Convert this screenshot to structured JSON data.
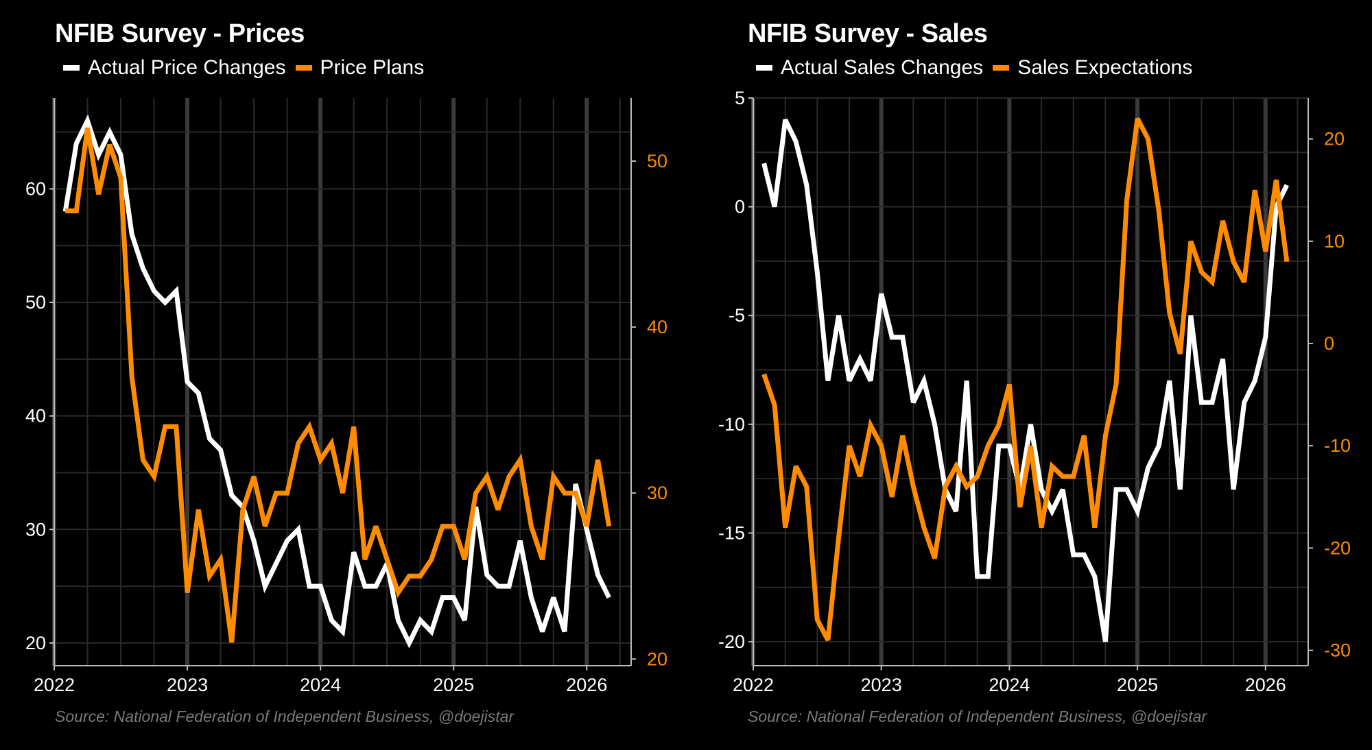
{
  "colors": {
    "background": "#000000",
    "actual": "#ffffff",
    "plans": "#ff8c00",
    "grid": "#2a2a2a",
    "grid_year": "#3a3a3a",
    "axis": "#bdbdbd",
    "source_text": "#7a7a7a"
  },
  "chart_data": [
    {
      "type": "line",
      "title": "NFIB Survey - Prices",
      "source": "Source: National Federation of Independent Business, @doejistar",
      "x_start": "2022-02",
      "x_frequency": "monthly",
      "x_tick_labels": [
        "2022",
        "2023",
        "2024",
        "2025",
        "2026"
      ],
      "xlim": [
        "2022-01",
        "2026-05"
      ],
      "grid": true,
      "legend_position": "top-left",
      "y_left": {
        "ylim": [
          18,
          68
        ],
        "ticks": [
          20,
          30,
          40,
          50,
          60
        ],
        "tick_labels": [
          "20",
          "30",
          "40",
          "50",
          "60"
        ]
      },
      "y_right": {
        "ylim": [
          19.6,
          53.8
        ],
        "ticks": [
          20,
          30,
          40,
          50
        ],
        "tick_labels": [
          "20",
          "30",
          "40",
          "50"
        ]
      },
      "series": [
        {
          "name": "Actual Price Changes",
          "axis": "left",
          "color": "#ffffff",
          "values": [
            58,
            64,
            66,
            63,
            65,
            63,
            56,
            53,
            51,
            50,
            51,
            43,
            42,
            38,
            37,
            33,
            32,
            29,
            25,
            27,
            29,
            30,
            25,
            25,
            22,
            21,
            28,
            25,
            25,
            27,
            22,
            20,
            22,
            21,
            24,
            24,
            22,
            32,
            26,
            25,
            25,
            29,
            24,
            21,
            24,
            21,
            34,
            30,
            26,
            24
          ]
        },
        {
          "name": "Price Plans",
          "axis": "right",
          "color": "#ff8c00",
          "values": [
            47,
            47,
            52,
            48,
            51,
            49,
            37,
            32,
            31,
            34,
            34,
            24,
            29,
            25,
            26,
            21,
            29,
            31,
            28,
            30,
            30,
            33,
            34,
            32,
            33,
            30,
            34,
            26,
            28,
            26,
            24,
            25,
            25,
            26,
            28,
            28,
            26,
            30,
            31,
            29,
            31,
            32,
            28,
            26,
            31,
            30,
            30,
            28,
            32,
            28
          ]
        }
      ]
    },
    {
      "type": "line",
      "title": "NFIB Survey - Sales",
      "source": "Source: National Federation of Independent Business, @doejistar",
      "x_start": "2022-02",
      "x_frequency": "monthly",
      "x_tick_labels": [
        "2022",
        "2023",
        "2024",
        "2025",
        "2026"
      ],
      "xlim": [
        "2022-01",
        "2026-05"
      ],
      "grid": true,
      "legend_position": "top-left",
      "y_left": {
        "ylim": [
          -21.1,
          5.0
        ],
        "ticks": [
          -20,
          -15,
          -10,
          -5,
          0,
          5
        ],
        "tick_labels": [
          "-20",
          "-15",
          "-10",
          "-5",
          "0",
          "5"
        ]
      },
      "y_right": {
        "ylim": [
          -31.5,
          24.0
        ],
        "ticks": [
          -30,
          -20,
          -10,
          0,
          10,
          20
        ],
        "tick_labels": [
          "-30",
          "-20",
          "-10",
          "0",
          "10",
          "20"
        ]
      },
      "series": [
        {
          "name": "Actual Sales Changes",
          "axis": "left",
          "color": "#ffffff",
          "values": [
            2,
            0,
            4,
            3,
            1,
            -3,
            -8,
            -5,
            -8,
            -7,
            -8,
            -4,
            -6,
            -6,
            -9,
            -8,
            -10,
            -13,
            -14,
            -8,
            -17,
            -17,
            -11,
            -11,
            -13,
            -10,
            -13,
            -14,
            -13,
            -16,
            -16,
            -17,
            -20,
            -13,
            -13,
            -14,
            -12,
            -11,
            -8,
            -13,
            -5,
            -9,
            -9,
            -7,
            -13,
            -9,
            -8,
            -6,
            0,
            1
          ]
        },
        {
          "name": "Sales Expectations",
          "axis": "right",
          "color": "#ff8c00",
          "values": [
            -3,
            -6,
            -18,
            -12,
            -14,
            -27,
            -29,
            -19,
            -10,
            -13,
            -8,
            -10,
            -15,
            -9,
            -14,
            -18,
            -21,
            -14,
            -12,
            -14,
            -13,
            -10,
            -8,
            -4,
            -16,
            -10,
            -18,
            -12,
            -13,
            -13,
            -9,
            -18,
            -9,
            -4,
            14,
            22,
            20,
            13,
            3,
            -1,
            10,
            7,
            6,
            12,
            8,
            6,
            15,
            9,
            16,
            8
          ]
        }
      ]
    }
  ],
  "panels": {
    "prices": {
      "title": "NFIB Survey - Prices",
      "legend": [
        "Actual Price Changes",
        "Price Plans"
      ],
      "source": "Source: National Federation of Independent Business, @doejistar"
    },
    "sales": {
      "title": "NFIB Survey - Sales",
      "legend": [
        "Actual Sales Changes",
        "Sales Expectations"
      ],
      "source": "Source: National Federation of Independent Business, @doejistar"
    }
  }
}
